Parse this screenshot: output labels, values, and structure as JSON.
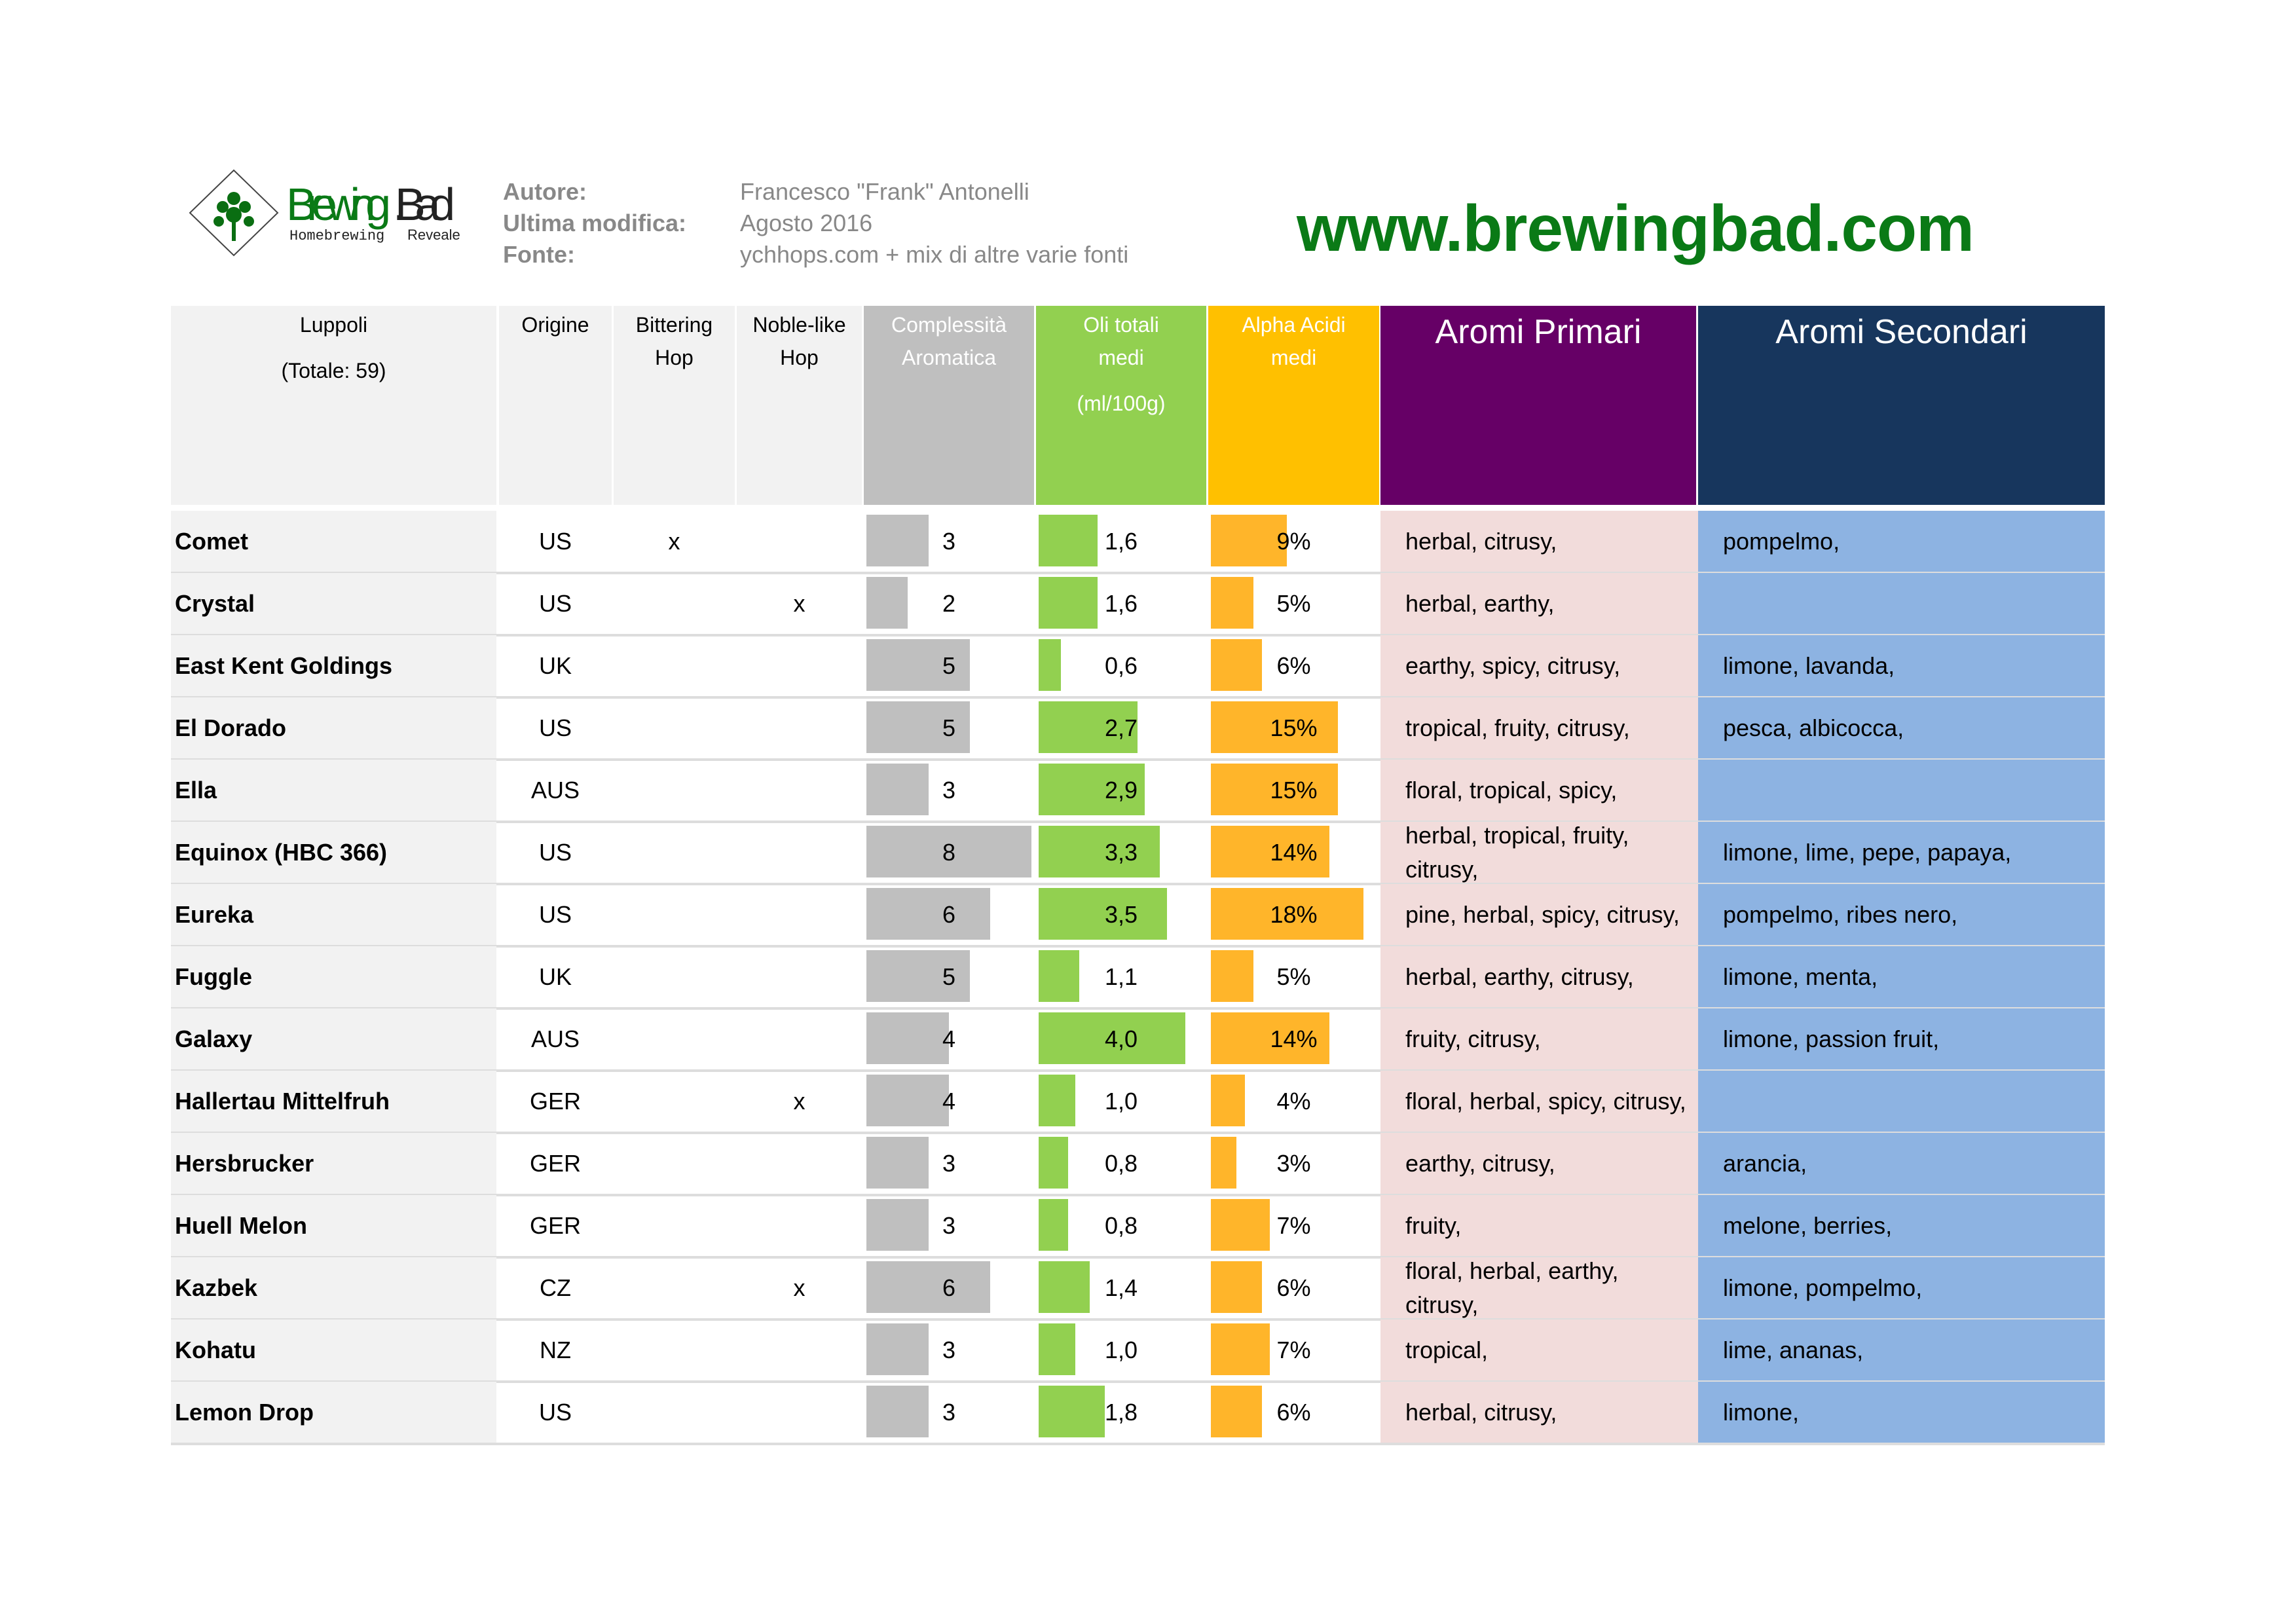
{
  "logo": {
    "brand": "BrewingBad",
    "tagline_left": "Homebrewing",
    "tagline_right": "Revealed"
  },
  "meta": [
    {
      "label": "Autore:",
      "value": "Francesco \"Frank\" Antonelli"
    },
    {
      "label": "Ultima modifica:",
      "value": "Agosto 2016"
    },
    {
      "label": "Fonte:",
      "value": "ychhops.com + mix di altre varie fonti"
    }
  ],
  "website": "www.brewingbad.com",
  "colors": {
    "complexity": "#bfbfbf",
    "oils": "#92d050",
    "alpha": "#ffc000",
    "alpha_bar": "#ffb52a",
    "primari_header": "#660066",
    "secondari_header": "#17365d",
    "primari_cell": "#f2dcdb",
    "secondari_cell": "#8db3e2",
    "name_bg": "#f2f2f2"
  },
  "headers": {
    "luppoli": "Luppoli",
    "totale": "(Totale: 59)",
    "origine": "Origine",
    "bittering": [
      "Bittering",
      "Hop"
    ],
    "noble": [
      "Noble-like",
      "Hop"
    ],
    "complexity": [
      "Complessità",
      "Aromatica"
    ],
    "oils": [
      "Oli totali",
      "medi",
      "(ml/100g)"
    ],
    "alpha": [
      "Alpha Acidi",
      "medi"
    ],
    "primari": "Aromi Primari",
    "secondari": "Aromi Secondari"
  },
  "rows": [
    {
      "name": "Comet",
      "origin": "US",
      "bittering": "x",
      "noble": "",
      "complexity": 3,
      "oils": "1,6",
      "alpha": "9%",
      "primari": "herbal, citrusy,",
      "secondari": "pompelmo,"
    },
    {
      "name": "Crystal",
      "origin": "US",
      "bittering": "",
      "noble": "x",
      "complexity": 2,
      "oils": "1,6",
      "alpha": "5%",
      "primari": "herbal, earthy,",
      "secondari": ""
    },
    {
      "name": "East Kent Goldings",
      "origin": "UK",
      "bittering": "",
      "noble": "",
      "complexity": 5,
      "oils": "0,6",
      "alpha": "6%",
      "primari": "earthy, spicy, citrusy,",
      "secondari": "limone, lavanda,"
    },
    {
      "name": "El Dorado",
      "origin": "US",
      "bittering": "",
      "noble": "",
      "complexity": 5,
      "oils": "2,7",
      "alpha": "15%",
      "primari": "tropical, fruity, citrusy,",
      "secondari": "pesca, albicocca,"
    },
    {
      "name": "Ella",
      "origin": "AUS",
      "bittering": "",
      "noble": "",
      "complexity": 3,
      "oils": "2,9",
      "alpha": "15%",
      "primari": "floral, tropical, spicy,",
      "secondari": ""
    },
    {
      "name": "Equinox (HBC 366)",
      "origin": "US",
      "bittering": "",
      "noble": "",
      "complexity": 8,
      "oils": "3,3",
      "alpha": "14%",
      "primari": "herbal, tropical, fruity, citrusy,",
      "secondari": "limone, lime, pepe, papaya,"
    },
    {
      "name": "Eureka",
      "origin": "US",
      "bittering": "",
      "noble": "",
      "complexity": 6,
      "oils": "3,5",
      "alpha": "18%",
      "primari": "pine, herbal, spicy, citrusy,",
      "secondari": "pompelmo, ribes nero,"
    },
    {
      "name": "Fuggle",
      "origin": "UK",
      "bittering": "",
      "noble": "",
      "complexity": 5,
      "oils": "1,1",
      "alpha": "5%",
      "primari": "herbal, earthy, citrusy,",
      "secondari": "limone, menta,"
    },
    {
      "name": "Galaxy",
      "origin": "AUS",
      "bittering": "",
      "noble": "",
      "complexity": 4,
      "oils": "4,0",
      "alpha": "14%",
      "primari": "fruity, citrusy,",
      "secondari": "limone, passion fruit,"
    },
    {
      "name": "Hallertau Mittelfruh",
      "origin": "GER",
      "bittering": "",
      "noble": "x",
      "complexity": 4,
      "oils": "1,0",
      "alpha": "4%",
      "primari": "floral, herbal, spicy, citrusy,",
      "secondari": ""
    },
    {
      "name": "Hersbrucker",
      "origin": "GER",
      "bittering": "",
      "noble": "",
      "complexity": 3,
      "oils": "0,8",
      "alpha": "3%",
      "primari": "earthy, citrusy,",
      "secondari": "arancia,"
    },
    {
      "name": "Huell Melon",
      "origin": "GER",
      "bittering": "",
      "noble": "",
      "complexity": 3,
      "oils": "0,8",
      "alpha": "7%",
      "primari": "fruity,",
      "secondari": "melone, berries,"
    },
    {
      "name": "Kazbek",
      "origin": "CZ",
      "bittering": "",
      "noble": "x",
      "complexity": 6,
      "oils": "1,4",
      "alpha": "6%",
      "primari": "floral, herbal, earthy, citrusy,",
      "secondari": "limone, pompelmo,"
    },
    {
      "name": "Kohatu",
      "origin": "NZ",
      "bittering": "",
      "noble": "",
      "complexity": 3,
      "oils": "1,0",
      "alpha": "7%",
      "primari": "tropical,",
      "secondari": "lime, ananas,"
    },
    {
      "name": "Lemon Drop",
      "origin": "US",
      "bittering": "",
      "noble": "",
      "complexity": 3,
      "oils": "1,8",
      "alpha": "6%",
      "primari": "herbal, citrusy,",
      "secondari": "limone,"
    }
  ]
}
